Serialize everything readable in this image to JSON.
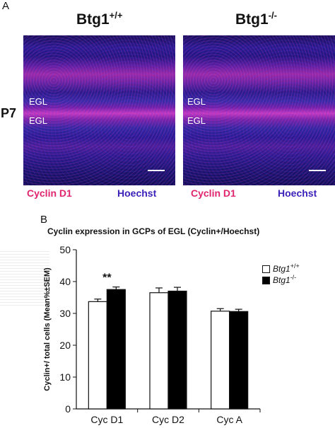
{
  "figure": {
    "panel_a": "A",
    "panel_b": "B",
    "genotype_wt_base": "Btg1",
    "genotype_wt_sup": "+/+",
    "genotype_ko_base": "Btg1",
    "genotype_ko_sup": "-/-",
    "age_label": "P7",
    "egl_label": "EGL",
    "stain_red": "Cyclin D1",
    "stain_blue": "Hoechst",
    "stain_red_color": "#e0246e",
    "stain_blue_color": "#3a1fb8"
  },
  "chart_data": {
    "type": "bar",
    "title": "Cyclin expression in GCPs of EGL (Cyclin+/Hoechst)",
    "ylabel": "Cyclin+/ total cells (Mean%±SEM)",
    "xlabel": "",
    "categories": [
      "Cyc D1",
      "Cyc D2",
      "Cyc A"
    ],
    "ylim": [
      0,
      50
    ],
    "yticks": [
      0,
      10,
      20,
      30,
      40,
      50
    ],
    "series": [
      {
        "name": "Btg1+/+",
        "base": "Btg1",
        "sup": "+/+",
        "color": "#ffffff",
        "values": [
          33.7,
          36.5,
          30.7
        ],
        "errors": [
          0.8,
          1.5,
          0.8
        ]
      },
      {
        "name": "Btg1-/-",
        "base": "Btg1",
        "sup": "-/-",
        "color": "#000000",
        "values": [
          37.5,
          37.0,
          30.6
        ],
        "errors": [
          0.8,
          1.2,
          0.7
        ]
      }
    ],
    "annotations": [
      {
        "category": "Cyc D1",
        "text": "**"
      }
    ],
    "legend_position": "top-right",
    "grid": false
  }
}
